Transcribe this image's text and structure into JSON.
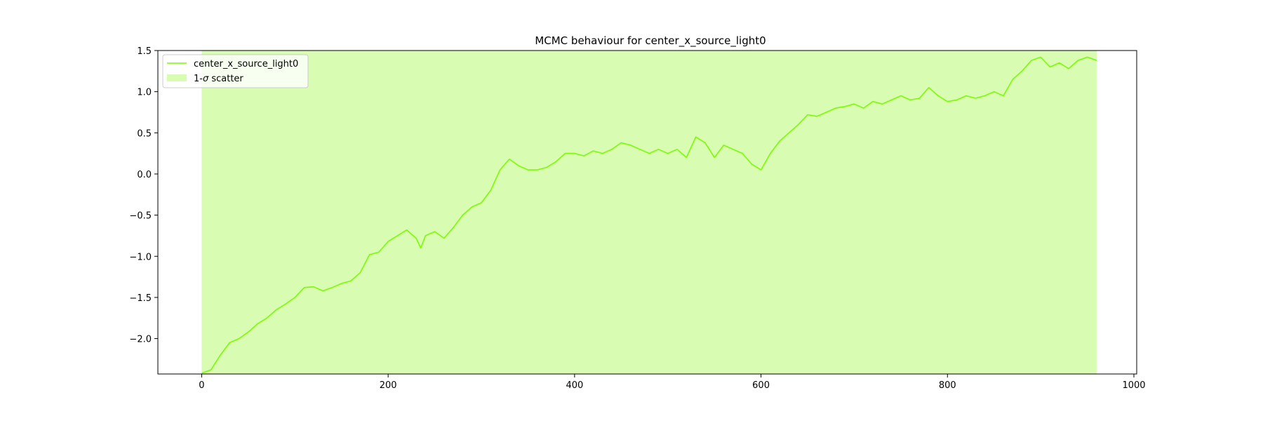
{
  "chart_data": {
    "type": "line",
    "title": "MCMC behaviour for center_x_source_light0",
    "xlabel": "",
    "ylabel": "",
    "xlim": [
      -47,
      1003
    ],
    "ylim": [
      -2.43,
      1.5
    ],
    "xticks": [
      0,
      200,
      400,
      600,
      800,
      1000
    ],
    "xtick_labels": [
      "0",
      "200",
      "400",
      "600",
      "800",
      "1000"
    ],
    "yticks": [
      -2.0,
      -1.5,
      -1.0,
      -0.5,
      0.0,
      0.5,
      1.0,
      1.5
    ],
    "ytick_labels": [
      "−2.0",
      "−1.5",
      "−1.0",
      "−0.5",
      "0.0",
      "0.5",
      "1.0",
      "1.5"
    ],
    "grid": false,
    "legend_position": "top-left",
    "series": [
      {
        "name": "center_x_source_light0",
        "color": "#7cfc00",
        "x": [
          0,
          10,
          20,
          30,
          40,
          50,
          60,
          70,
          80,
          90,
          100,
          110,
          120,
          130,
          140,
          150,
          160,
          170,
          180,
          190,
          200,
          210,
          220,
          230,
          235,
          240,
          250,
          260,
          270,
          280,
          290,
          300,
          310,
          320,
          330,
          340,
          350,
          360,
          370,
          380,
          390,
          400,
          410,
          420,
          430,
          440,
          450,
          460,
          470,
          480,
          490,
          500,
          510,
          520,
          530,
          540,
          550,
          560,
          570,
          580,
          590,
          600,
          610,
          620,
          630,
          640,
          650,
          660,
          670,
          680,
          690,
          700,
          710,
          720,
          730,
          740,
          750,
          760,
          770,
          780,
          790,
          800,
          810,
          820,
          830,
          840,
          850,
          860,
          870,
          880,
          890,
          900,
          910,
          920,
          930,
          940,
          950,
          960
        ],
        "values": [
          -2.42,
          -2.38,
          -2.2,
          -2.05,
          -2.0,
          -1.92,
          -1.82,
          -1.75,
          -1.65,
          -1.58,
          -1.5,
          -1.38,
          -1.37,
          -1.42,
          -1.38,
          -1.33,
          -1.3,
          -1.2,
          -0.98,
          -0.95,
          -0.82,
          -0.75,
          -0.68,
          -0.78,
          -0.9,
          -0.75,
          -0.7,
          -0.78,
          -0.65,
          -0.5,
          -0.4,
          -0.35,
          -0.2,
          0.05,
          0.18,
          0.1,
          0.05,
          0.05,
          0.08,
          0.15,
          0.25,
          0.25,
          0.22,
          0.28,
          0.25,
          0.3,
          0.38,
          0.35,
          0.3,
          0.25,
          0.3,
          0.25,
          0.3,
          0.2,
          0.45,
          0.38,
          0.2,
          0.35,
          0.3,
          0.25,
          0.12,
          0.05,
          0.25,
          0.4,
          0.5,
          0.6,
          0.72,
          0.7,
          0.75,
          0.8,
          0.82,
          0.85,
          0.8,
          0.88,
          0.85,
          0.9,
          0.95,
          0.9,
          0.92,
          1.05,
          0.95,
          0.88,
          0.9,
          0.95,
          0.92,
          0.95,
          1.0,
          0.95,
          1.15,
          1.25,
          1.38,
          1.42,
          1.3,
          1.35,
          1.28,
          1.38,
          1.42,
          1.38
        ]
      }
    ],
    "band": {
      "name": "1-σ scatter",
      "color": "#d7fcb2",
      "x": [
        0,
        960
      ],
      "lower": -2.43,
      "upper": 1.5
    },
    "legend": {
      "line_label": "center_x_source_light0",
      "band_label_prefix": "1-",
      "band_label_symbol": "σ",
      "band_label_suffix": " scatter"
    }
  }
}
